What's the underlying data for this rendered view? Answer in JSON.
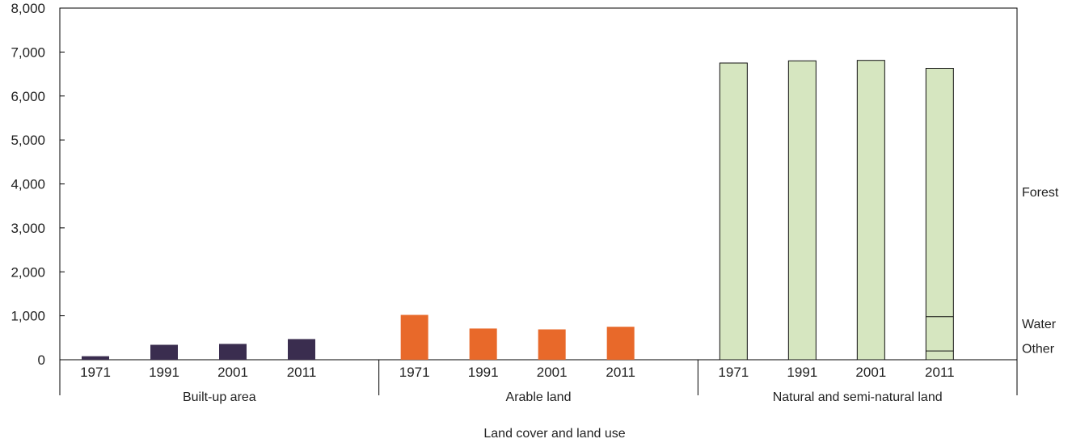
{
  "chart_data": {
    "type": "bar",
    "title": "",
    "xlabel": "Land cover and land use",
    "ylabel": "",
    "ylim": [
      0,
      8000
    ],
    "yticks": [
      0,
      1000,
      2000,
      3000,
      4000,
      5000,
      6000,
      7000,
      8000
    ],
    "ytick_labels": [
      "0",
      "1,000",
      "2,000",
      "3,000",
      "4,000",
      "5,000",
      "6,000",
      "7,000",
      "8,000"
    ],
    "grid": false,
    "groups": [
      {
        "name": "Built-up area",
        "color": "#3a2d4f",
        "categories": [
          "1971",
          "1991",
          "2001",
          "2011"
        ],
        "values": [
          80,
          340,
          360,
          470
        ]
      },
      {
        "name": "Arable land",
        "color": "#e8692a",
        "categories": [
          "1971",
          "1991",
          "2001",
          "2011"
        ],
        "values": [
          1020,
          710,
          690,
          750
        ]
      },
      {
        "name": "Natural and semi-natural land",
        "color": "#d6e6c0",
        "categories": [
          "1971",
          "1991",
          "2001",
          "2011"
        ],
        "values": [
          6750,
          6800,
          6810,
          6630
        ],
        "breakdown_2011": [
          {
            "name": "Other",
            "value": 200
          },
          {
            "name": "Water",
            "value": 780
          },
          {
            "name": "Forest",
            "value": 5650
          }
        ]
      }
    ],
    "side_labels": [
      "Forest",
      "Water",
      "Other"
    ]
  }
}
